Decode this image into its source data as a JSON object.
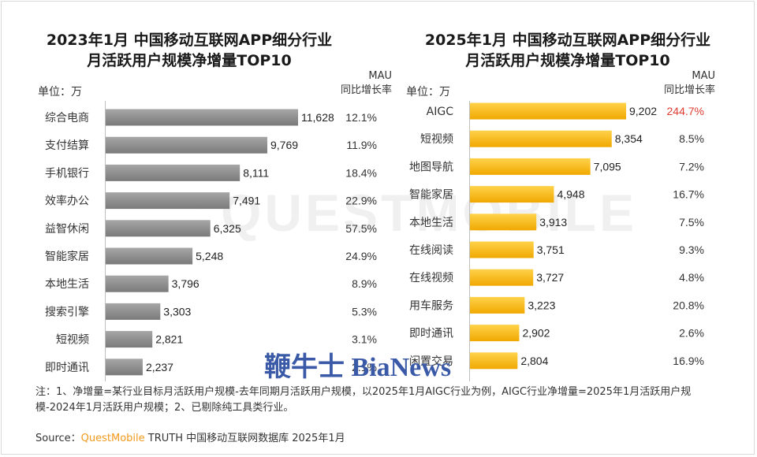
{
  "left": {
    "title_line1": "2023年1月 中国移动互联网APP细分行业",
    "title_line2": "月活跃用户规模净增量TOP10",
    "unit": "单位：万",
    "mau_line1": "MAU",
    "mau_line2": "同比增长率"
  },
  "right": {
    "title_line1": "2025年1月 中国移动互联网APP细分行业",
    "title_line2": "月活跃用户规模净增量TOP10",
    "unit": "单位：万",
    "mau_line1": "MAU",
    "mau_line2": "同比增长率"
  },
  "chart_data": [
    {
      "type": "bar",
      "orientation": "horizontal",
      "title": "2023年1月 中国移动互联网APP细分行业月活跃用户规模净增量TOP10",
      "categories": [
        "综合电商",
        "支付结算",
        "手机银行",
        "效率办公",
        "益智休闲",
        "智能家居",
        "本地生活",
        "搜索引擎",
        "短视频",
        "即时通讯"
      ],
      "values": [
        11628,
        9769,
        8111,
        7491,
        6325,
        5248,
        3796,
        3303,
        2821,
        2237
      ],
      "value_labels": [
        "11,628",
        "9,769",
        "8,111",
        "7,491",
        "6,325",
        "5,248",
        "3,796",
        "3,303",
        "2,821",
        "2,237"
      ],
      "growth": [
        "12.1%",
        "11.9%",
        "18.4%",
        "22.9%",
        "57.5%",
        "24.9%",
        "8.9%",
        "5.3%",
        "3.1%",
        "2.1%"
      ],
      "bar_color": "#8c8c8c",
      "xlim": [
        0,
        11628
      ]
    },
    {
      "type": "bar",
      "orientation": "horizontal",
      "title": "2025年1月 中国移动互联网APP细分行业月活跃用户规模净增量TOP10",
      "categories": [
        "AIGC",
        "短视频",
        "地图导航",
        "智能家居",
        "本地生活",
        "在线阅读",
        "在线视频",
        "用车服务",
        "即时通讯",
        "闲置交易"
      ],
      "values": [
        9202,
        8354,
        7095,
        4948,
        3913,
        3751,
        3727,
        3223,
        2902,
        2804
      ],
      "value_labels": [
        "9,202",
        "8,354",
        "7,095",
        "4,948",
        "3,913",
        "3,751",
        "3,727",
        "3,223",
        "2,902",
        "2,804"
      ],
      "growth": [
        "244.7%",
        "8.5%",
        "7.2%",
        "16.7%",
        "7.5%",
        "9.3%",
        "4.8%",
        "20.8%",
        "2.6%",
        "16.9%"
      ],
      "highlight_growth_color": "#e03c31",
      "bar_color": "#f6b400",
      "xlim": [
        0,
        9202
      ]
    }
  ],
  "note": "注：1、净增量=某行业目标月活跃用户规模-去年同期月活跃用户规模，以2025年1月AIGC行业为例，AIGC行业净增量=2025年1月活跃用户规模-2024年1月活跃用户规模；2、已剔除纯工具类行业。",
  "source": {
    "prefix": "Source：",
    "brand": "QuestMobile",
    "suffix": " TRUTH 中国移动互联网数据库 2025年1月"
  },
  "watermark": {
    "brand": "QUESTMOBILE",
    "text": "鞭牛士 BiaNews"
  }
}
